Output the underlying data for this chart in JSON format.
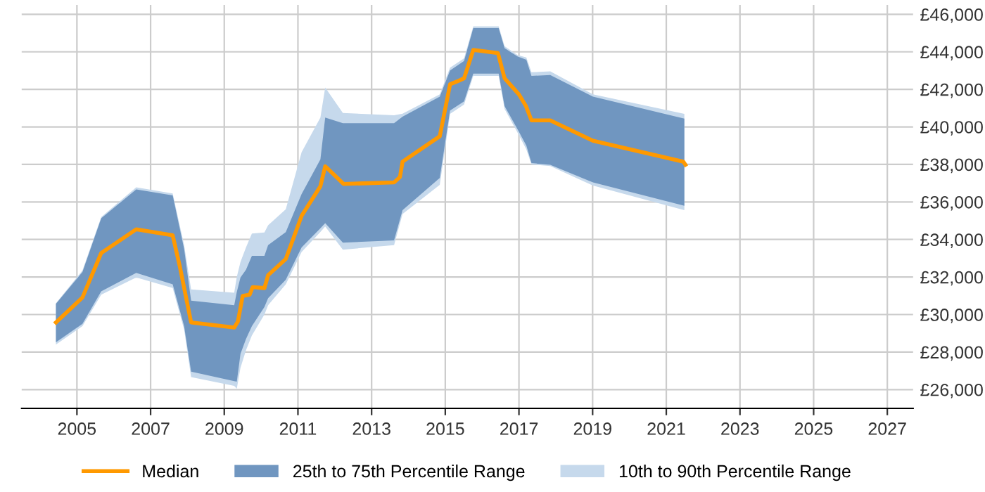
{
  "chart_data": {
    "type": "line",
    "xlim": [
      2003.5,
      2027.7
    ],
    "xticks": [
      2005,
      2007,
      2009,
      2011,
      2013,
      2015,
      2017,
      2019,
      2021,
      2023,
      2025,
      2027
    ],
    "ylim": [
      25000,
      46500
    ],
    "yticks": [
      {
        "value": 26000,
        "label": "£26,000"
      },
      {
        "value": 28000,
        "label": "£28,000"
      },
      {
        "value": 30000,
        "label": "£30,000"
      },
      {
        "value": 32000,
        "label": "£32,000"
      },
      {
        "value": 34000,
        "label": "£34,000"
      },
      {
        "value": 36000,
        "label": "£36,000"
      },
      {
        "value": 38000,
        "label": "£38,000"
      },
      {
        "value": 40000,
        "label": "£40,000"
      },
      {
        "value": 42000,
        "label": "£42,000"
      },
      {
        "value": 44000,
        "label": "£44,000"
      },
      {
        "value": 46000,
        "label": "£46,000"
      }
    ],
    "grid": true,
    "legend": "bottom",
    "series": [
      {
        "name": "Median",
        "type": "line",
        "color": "#ff9900",
        "x": [
          2004.43,
          2005.15,
          2005.66,
          2006.61,
          2007.6,
          2007.79,
          2008.1,
          2009.27,
          2009.37,
          2009.5,
          2009.69,
          2009.77,
          2010.09,
          2010.19,
          2010.67,
          2011.1,
          2011.61,
          2011.74,
          2012.24,
          2013.61,
          2013.77,
          2013.84,
          2014.85,
          2015.13,
          2015.32,
          2015.51,
          2015.76,
          2016.43,
          2016.61,
          2017.0,
          2017.19,
          2017.34,
          2017.85,
          2019.01,
          2021.46,
          2021.52
        ],
        "values": [
          29580,
          30910,
          33280,
          34540,
          34220,
          32590,
          29580,
          29310,
          29630,
          30990,
          31060,
          31460,
          31410,
          32100,
          32960,
          35260,
          36840,
          37900,
          36960,
          37040,
          37330,
          38150,
          39500,
          42270,
          42420,
          42590,
          44100,
          43930,
          42590,
          41730,
          41110,
          40350,
          40350,
          39260,
          38150,
          37980
        ]
      },
      {
        "name": "25th to 75th Percentile Range",
        "type": "area",
        "color": "#7096c0",
        "x": [
          2004.43,
          2005.15,
          2005.66,
          2006.61,
          2007.6,
          2007.91,
          2008.1,
          2009.27,
          2009.34,
          2009.44,
          2009.59,
          2009.75,
          2010.09,
          2010.19,
          2010.67,
          2011.1,
          2011.61,
          2011.74,
          2012.22,
          2013.61,
          2013.84,
          2014.85,
          2015.13,
          2015.51,
          2015.76,
          2016.45,
          2016.61,
          2016.96,
          2017.2,
          2017.34,
          2017.85,
          2019.01,
          2021.49
        ],
        "values": [
          null,
          null,
          null,
          null,
          null,
          null,
          null,
          null,
          null,
          null,
          null,
          null,
          null,
          null,
          null,
          null,
          null,
          null,
          null,
          null,
          null,
          null,
          null,
          null,
          null,
          null,
          null,
          null,
          null,
          null,
          null,
          null,
          null
        ],
        "upper": [
          30570,
          32270,
          35130,
          36670,
          36350,
          33500,
          30740,
          30500,
          31200,
          31980,
          32390,
          33130,
          33130,
          33700,
          34390,
          36420,
          38270,
          40500,
          40200,
          40200,
          40540,
          41610,
          43010,
          43510,
          45260,
          45260,
          44200,
          43760,
          43580,
          42720,
          42760,
          41610,
          40440
        ],
        "lower": [
          28520,
          29500,
          31240,
          32220,
          31610,
          29380,
          26960,
          26450,
          26420,
          27900,
          28700,
          29380,
          30400,
          30870,
          31850,
          33580,
          34600,
          34870,
          33830,
          33950,
          35560,
          37280,
          40870,
          41360,
          42840,
          42840,
          41110,
          39880,
          39010,
          38070,
          37980,
          37040,
          35800
        ]
      },
      {
        "name": "10th to 90th Percentile Range",
        "type": "area",
        "color": "#c6d9ec",
        "x": [
          2004.43,
          2005.15,
          2005.66,
          2006.61,
          2007.6,
          2007.91,
          2008.1,
          2009.27,
          2009.34,
          2009.44,
          2009.59,
          2009.75,
          2010.09,
          2010.19,
          2010.67,
          2011.1,
          2011.61,
          2011.74,
          2012.22,
          2013.61,
          2013.84,
          2014.85,
          2015.13,
          2015.51,
          2015.76,
          2016.45,
          2016.61,
          2016.96,
          2017.2,
          2017.34,
          2017.85,
          2019.01,
          2021.49
        ],
        "values": [
          null,
          null,
          null,
          null,
          null,
          null,
          null,
          null,
          null,
          null,
          null,
          null,
          null,
          null,
          null,
          null,
          null,
          null,
          null,
          null,
          null,
          null,
          null,
          null,
          null,
          null,
          null,
          null,
          null,
          null,
          null,
          null,
          null
        ],
        "upper": [
          30600,
          32350,
          35200,
          36780,
          36450,
          33700,
          31340,
          31160,
          32000,
          32800,
          33580,
          34320,
          34370,
          34760,
          35610,
          38650,
          40500,
          42100,
          40740,
          40620,
          40700,
          41730,
          43160,
          43650,
          45360,
          45360,
          44300,
          43830,
          43700,
          42910,
          42960,
          41730,
          40690
        ],
        "lower": [
          28400,
          29380,
          31060,
          31980,
          31410,
          29200,
          26670,
          26200,
          26050,
          27160,
          28100,
          28890,
          30000,
          30500,
          31610,
          33330,
          34400,
          34690,
          33460,
          33700,
          35360,
          36910,
          40690,
          41190,
          42720,
          42720,
          40960,
          39700,
          38800,
          38000,
          37910,
          36870,
          35560
        ]
      }
    ]
  }
}
